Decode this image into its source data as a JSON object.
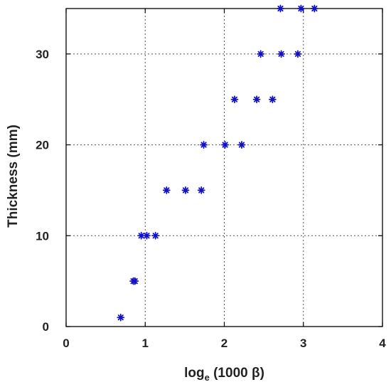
{
  "chart_data": {
    "type": "scatter",
    "title": "",
    "xlabel": {
      "prefix": "log",
      "subscript": "e",
      "suffix": " (1000 β)"
    },
    "ylabel": "Thickness (mm)",
    "xlim": [
      0,
      4
    ],
    "ylim": [
      0,
      35
    ],
    "xticks": [
      0,
      1,
      2,
      3,
      4
    ],
    "xtick_labels": [
      "0",
      "1",
      "2",
      "3",
      "4"
    ],
    "yticks": [
      0,
      10,
      20,
      30
    ],
    "ytick_labels": [
      "0",
      "10",
      "20",
      "30"
    ],
    "grid": true,
    "marker": "asterisk",
    "marker_color": "#1010cc",
    "grid_color": "#555555",
    "series": [
      {
        "x": [
          0.69,
          0.85,
          0.87,
          0.95,
          1.02,
          1.13,
          1.27,
          1.51,
          1.71,
          1.74,
          2.01,
          2.22,
          2.13,
          2.41,
          2.61,
          2.46,
          2.72,
          2.93,
          2.71,
          2.97,
          3.14
        ],
        "y": [
          1,
          5,
          5,
          10,
          10,
          10,
          15,
          15,
          15,
          20,
          20,
          20,
          25,
          25,
          25,
          30,
          30,
          30,
          35,
          35,
          35
        ]
      }
    ]
  }
}
